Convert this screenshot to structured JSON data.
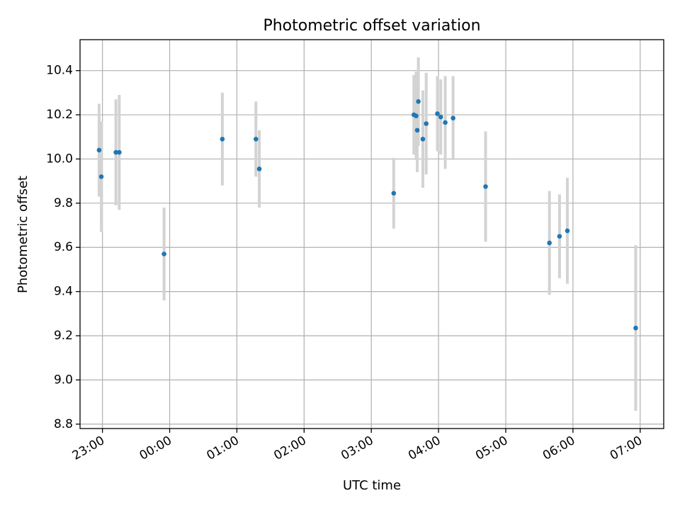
{
  "chart_data": {
    "type": "scatter",
    "title": "Photometric offset variation",
    "xlabel": "UTC time",
    "ylabel": "Photometric offset",
    "x_axis_kind": "time",
    "x_range": [
      "22:40",
      "07:21"
    ],
    "ylim": [
      8.78,
      10.54
    ],
    "grid": true,
    "x_ticks": [
      "23:00",
      "00:00",
      "01:00",
      "02:00",
      "03:00",
      "04:00",
      "05:00",
      "06:00",
      "07:00"
    ],
    "y_ticks": [
      "8.8",
      "9.0",
      "9.2",
      "9.4",
      "9.6",
      "9.8",
      "10.0",
      "10.2",
      "10.4"
    ],
    "colors": {
      "point": "#1f77b4",
      "errorbar": "#d3d3d3",
      "grid": "#b0b0b0"
    },
    "series": [
      {
        "points": [
          {
            "t": "22:57",
            "y": 10.04,
            "err": 0.21
          },
          {
            "t": "22:59",
            "y": 9.92,
            "err": 0.25
          },
          {
            "t": "23:12",
            "y": 10.03,
            "err": 0.24
          },
          {
            "t": "23:15",
            "y": 10.03,
            "err": 0.26
          },
          {
            "t": "23:55",
            "y": 9.57,
            "err": 0.21
          },
          {
            "t": "00:47",
            "y": 10.09,
            "err": 0.21
          },
          {
            "t": "01:17",
            "y": 10.09,
            "err": 0.17
          },
          {
            "t": "01:20",
            "y": 9.955,
            "err": 0.175
          },
          {
            "t": "03:20",
            "y": 9.845,
            "err": 0.16
          },
          {
            "t": "03:38",
            "y": 10.2,
            "err": 0.18
          },
          {
            "t": "03:40",
            "y": 10.195,
            "err": 0.2
          },
          {
            "t": "03:41",
            "y": 10.13,
            "err": 0.19
          },
          {
            "t": "03:42",
            "y": 10.26,
            "err": 0.2
          },
          {
            "t": "03:46",
            "y": 10.09,
            "err": 0.22
          },
          {
            "t": "03:49",
            "y": 10.16,
            "err": 0.23
          },
          {
            "t": "03:59",
            "y": 10.205,
            "err": 0.17
          },
          {
            "t": "04:02",
            "y": 10.19,
            "err": 0.17
          },
          {
            "t": "04:06",
            "y": 10.165,
            "err": 0.21
          },
          {
            "t": "04:13",
            "y": 10.185,
            "err": 0.19
          },
          {
            "t": "04:42",
            "y": 9.875,
            "err": 0.25
          },
          {
            "t": "05:39",
            "y": 9.62,
            "err": 0.235
          },
          {
            "t": "05:48",
            "y": 9.65,
            "err": 0.19
          },
          {
            "t": "05:55",
            "y": 9.675,
            "err": 0.24
          },
          {
            "t": "06:56",
            "y": 9.235,
            "err": 0.375
          }
        ]
      }
    ]
  }
}
